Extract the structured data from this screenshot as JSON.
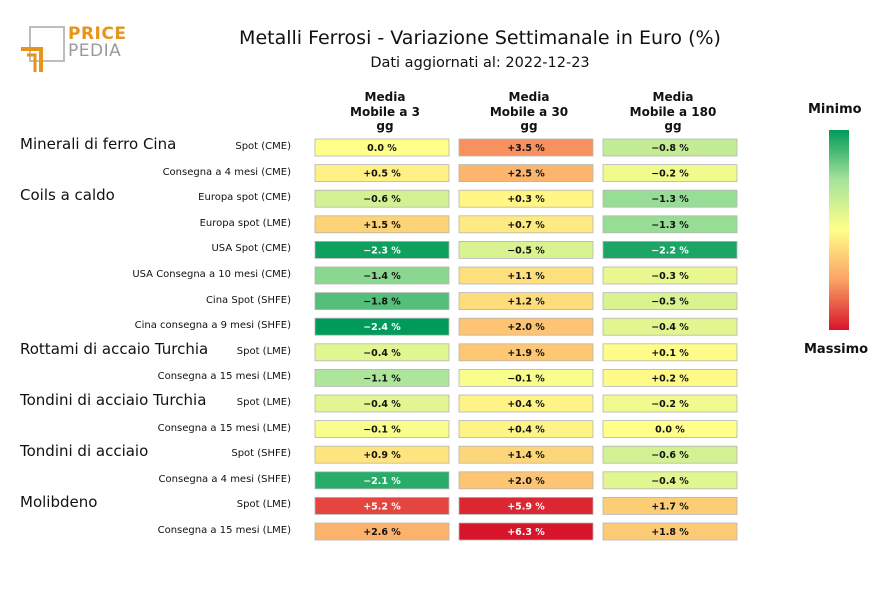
{
  "logo": {
    "line1": "PRICE",
    "line2": "PEDIA"
  },
  "chart_data": {
    "type": "heatmap",
    "title": "Metalli Ferrosi - Variazione Settimanale in Euro (%)",
    "subtitle": "Dati aggiornati al: 2022-12-23",
    "columns": [
      "Media\nMobile a 3\ngg",
      "Media\nMobile a 30\ngg",
      "Media\nMobile a 180\ngg"
    ],
    "rows": [
      {
        "group": "Minerali di ferro Cina",
        "label": "Spot (CME)",
        "values": [
          0.0,
          3.5,
          -0.8
        ],
        "texts": [
          "0.0 %",
          "+3.5 %",
          "−0.8 %"
        ]
      },
      {
        "group": "",
        "label": "Consegna a 4 mesi (CME)",
        "values": [
          0.5,
          2.5,
          -0.2
        ],
        "texts": [
          "+0.5 %",
          "+2.5 %",
          "−0.2 %"
        ]
      },
      {
        "group": "Coils a caldo",
        "label": "Europa spot (CME)",
        "values": [
          -0.6,
          0.3,
          -1.3
        ],
        "texts": [
          "−0.6 %",
          "+0.3 %",
          "−1.3 %"
        ]
      },
      {
        "group": "",
        "label": "Europa spot (LME)",
        "values": [
          1.5,
          0.7,
          -1.3
        ],
        "texts": [
          "+1.5 %",
          "+0.7 %",
          "−1.3 %"
        ]
      },
      {
        "group": "",
        "label": "USA Spot (CME)",
        "values": [
          -2.3,
          -0.5,
          -2.2
        ],
        "texts": [
          "−2.3 %",
          "−0.5 %",
          "−2.2 %"
        ]
      },
      {
        "group": "",
        "label": "USA Consegna a 10 mesi (CME)",
        "values": [
          -1.4,
          1.1,
          -0.3
        ],
        "texts": [
          "−1.4 %",
          "+1.1 %",
          "−0.3 %"
        ]
      },
      {
        "group": "",
        "label": "Cina Spot (SHFE)",
        "values": [
          -1.8,
          1.2,
          -0.5
        ],
        "texts": [
          "−1.8 %",
          "+1.2 %",
          "−0.5 %"
        ]
      },
      {
        "group": "",
        "label": "Cina consegna a 9 mesi (SHFE)",
        "values": [
          -2.4,
          2.0,
          -0.4
        ],
        "texts": [
          "−2.4 %",
          "+2.0 %",
          "−0.4 %"
        ]
      },
      {
        "group": "Rottami di accaio Turchia",
        "label": "Spot (LME)",
        "values": [
          -0.4,
          1.9,
          0.1
        ],
        "texts": [
          "−0.4 %",
          "+1.9 %",
          "+0.1 %"
        ]
      },
      {
        "group": "",
        "label": "Consegna a 15 mesi (LME)",
        "values": [
          -1.1,
          -0.1,
          0.2
        ],
        "texts": [
          "−1.1 %",
          "−0.1 %",
          "+0.2 %"
        ]
      },
      {
        "group": "Tondini di acciaio Turchia",
        "label": "Spot (LME)",
        "values": [
          -0.4,
          0.4,
          -0.2
        ],
        "texts": [
          "−0.4 %",
          "+0.4 %",
          "−0.2 %"
        ]
      },
      {
        "group": "",
        "label": "Consegna a 15 mesi (LME)",
        "values": [
          -0.1,
          0.4,
          0.0
        ],
        "texts": [
          "−0.1 %",
          "+0.4 %",
          "0.0 %"
        ]
      },
      {
        "group": "Tondini di acciaio",
        "label": "Spot (SHFE)",
        "values": [
          0.9,
          1.4,
          -0.6
        ],
        "texts": [
          "+0.9 %",
          "+1.4 %",
          "−0.6 %"
        ]
      },
      {
        "group": "",
        "label": "Consegna a 4 mesi (SHFE)",
        "values": [
          -2.1,
          2.0,
          -0.4
        ],
        "texts": [
          "−2.1 %",
          "+2.0 %",
          "−0.4 %"
        ]
      },
      {
        "group": "Molibdeno",
        "label": "Spot (LME)",
        "values": [
          5.2,
          5.9,
          1.7
        ],
        "texts": [
          "+5.2 %",
          "+5.9 %",
          "+1.7 %"
        ]
      },
      {
        "group": "",
        "label": "Consegna a 15 mesi (LME)",
        "values": [
          2.6,
          6.3,
          1.8
        ],
        "texts": [
          "+2.6 %",
          "+6.3 %",
          "+1.8 %"
        ]
      }
    ],
    "legend": {
      "top_label": "Minimo",
      "bottom_label": "Massimo"
    },
    "color_scale": {
      "min_color": "#009a5a",
      "mid_color": "#ffff8a",
      "max_color": "#d7142a",
      "min_value": -2.4,
      "max_value": 6.3
    }
  }
}
